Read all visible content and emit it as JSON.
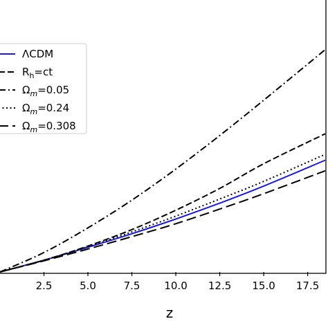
{
  "chart_data": {
    "type": "line",
    "xlabel": "z",
    "ylabel": "",
    "xlim": [
      0.0,
      18.5
    ],
    "x_ticks": [
      "2.5",
      "5.0",
      "7.5",
      "10.0",
      "12.5",
      "15.0",
      "17.5"
    ],
    "legend_position": "top-left",
    "grid": false,
    "series": [
      {
        "name": "ΛCDM",
        "name_main": "ΛCDM",
        "color": "#1a1adb",
        "dash": "solid",
        "x": [
          0,
          2.5,
          5,
          7.5,
          10,
          12.5,
          15,
          18.5
        ],
        "y": [
          0,
          0.2,
          0.42,
          0.65,
          0.9,
          1.17,
          1.46,
          1.9
        ]
      },
      {
        "name": "Rh=ct",
        "name_main": "R",
        "name_sub": "h",
        "name_rest": "=ct",
        "color": "#000000",
        "dash": "short-dash",
        "x": [
          0,
          2.5,
          5,
          7.5,
          10,
          12.5,
          15,
          18.5
        ],
        "y": [
          0,
          0.2,
          0.44,
          0.72,
          1.05,
          1.42,
          1.84,
          2.35
        ]
      },
      {
        "name": "Ωm=0.05",
        "name_main": "Ω",
        "name_sub": "m",
        "name_rest": "=0.05",
        "color": "#000000",
        "dash": "dash-dot",
        "x": [
          0,
          2.5,
          5,
          7.5,
          10,
          12.5,
          15,
          18.5
        ],
        "y": [
          0,
          0.33,
          0.75,
          1.22,
          1.75,
          2.32,
          2.92,
          3.78
        ]
      },
      {
        "name": "Ωm=0.24",
        "name_main": "Ω",
        "name_sub": "m",
        "name_rest": "=0.24",
        "color": "#000000",
        "dash": "dotted",
        "x": [
          0,
          2.5,
          5,
          7.5,
          10,
          12.5,
          15,
          18.5
        ],
        "y": [
          0,
          0.2,
          0.43,
          0.68,
          0.95,
          1.24,
          1.54,
          2.0
        ]
      },
      {
        "name": "Ωm=0.308",
        "name_main": "Ω",
        "name_sub": "m",
        "name_rest": "=0.308",
        "color": "#000000",
        "dash": "long-dash",
        "x": [
          0,
          2.5,
          5,
          7.5,
          10,
          12.5,
          15,
          18.5
        ],
        "y": [
          0,
          0.19,
          0.39,
          0.6,
          0.82,
          1.07,
          1.33,
          1.72
        ]
      }
    ]
  }
}
